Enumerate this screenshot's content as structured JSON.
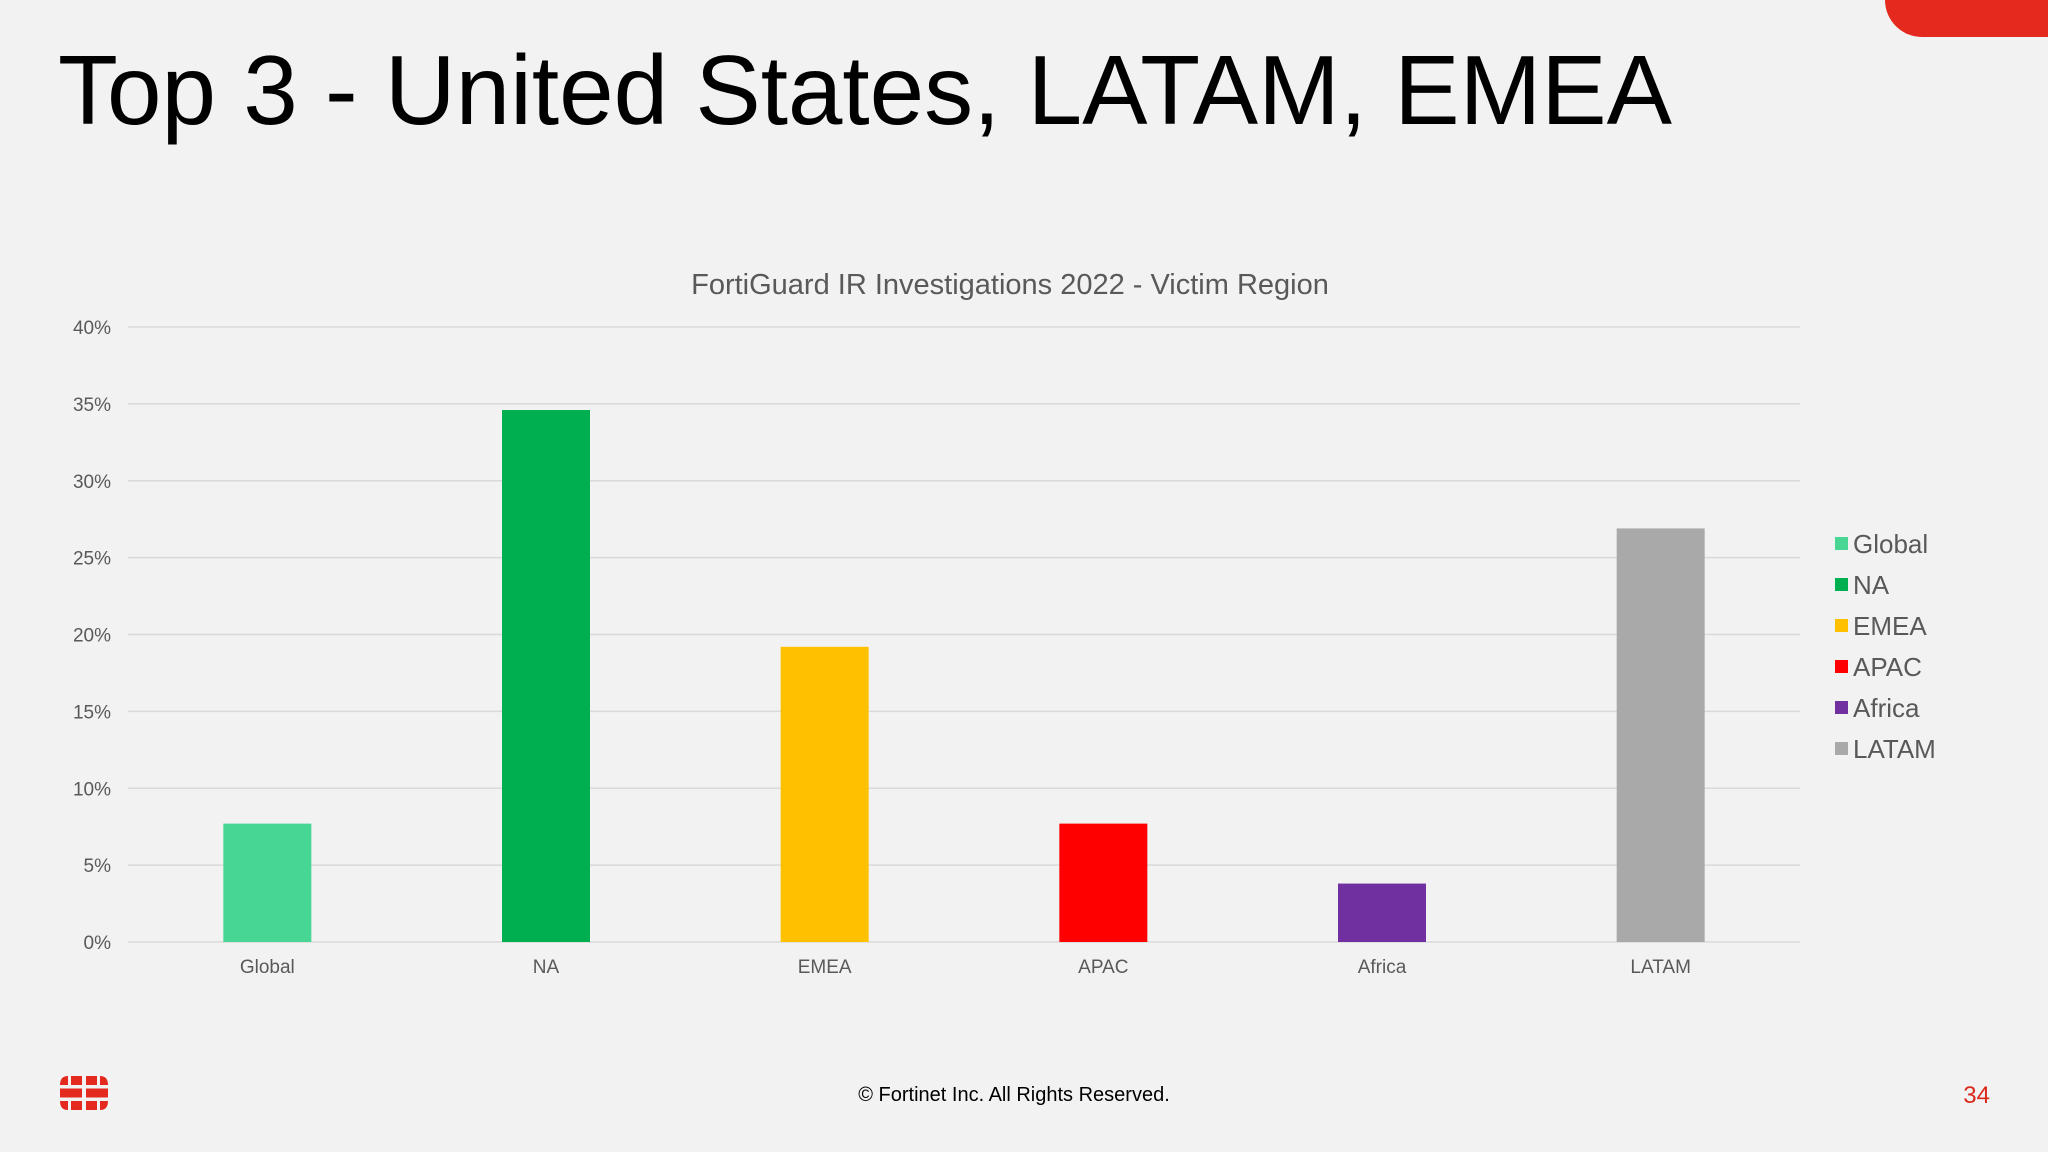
{
  "slide": {
    "title": "Top 3 - United States, LATAM, EMEA",
    "copyright": "© Fortinet Inc. All Rights Reserved.",
    "page_number": "34",
    "accent_color": "#e4291f",
    "logo_icon": "fortinet-logo-icon",
    "logo_color": "#e4291f"
  },
  "chart_data": {
    "type": "bar",
    "title": "FortiGuard IR Investigations 2022 - Victim Region",
    "categories": [
      "Global",
      "NA",
      "EMEA",
      "APAC",
      "Africa",
      "LATAM"
    ],
    "values": [
      7.7,
      34.6,
      19.2,
      7.7,
      3.8,
      26.9
    ],
    "colors": [
      "#47d694",
      "#00b050",
      "#ffc000",
      "#ff0000",
      "#7030a0",
      "#a9a9a9"
    ],
    "ylim": [
      0,
      40
    ],
    "yticks": [
      0,
      5,
      10,
      15,
      20,
      25,
      30,
      35,
      40
    ],
    "ytick_labels": [
      "0%",
      "5%",
      "10%",
      "15%",
      "20%",
      "25%",
      "30%",
      "35%",
      "40%"
    ],
    "xlabel": "",
    "ylabel": "",
    "grid": true,
    "legend": {
      "position": "right",
      "entries": [
        "Global",
        "NA",
        "EMEA",
        "APAC",
        "Africa",
        "LATAM"
      ]
    }
  }
}
